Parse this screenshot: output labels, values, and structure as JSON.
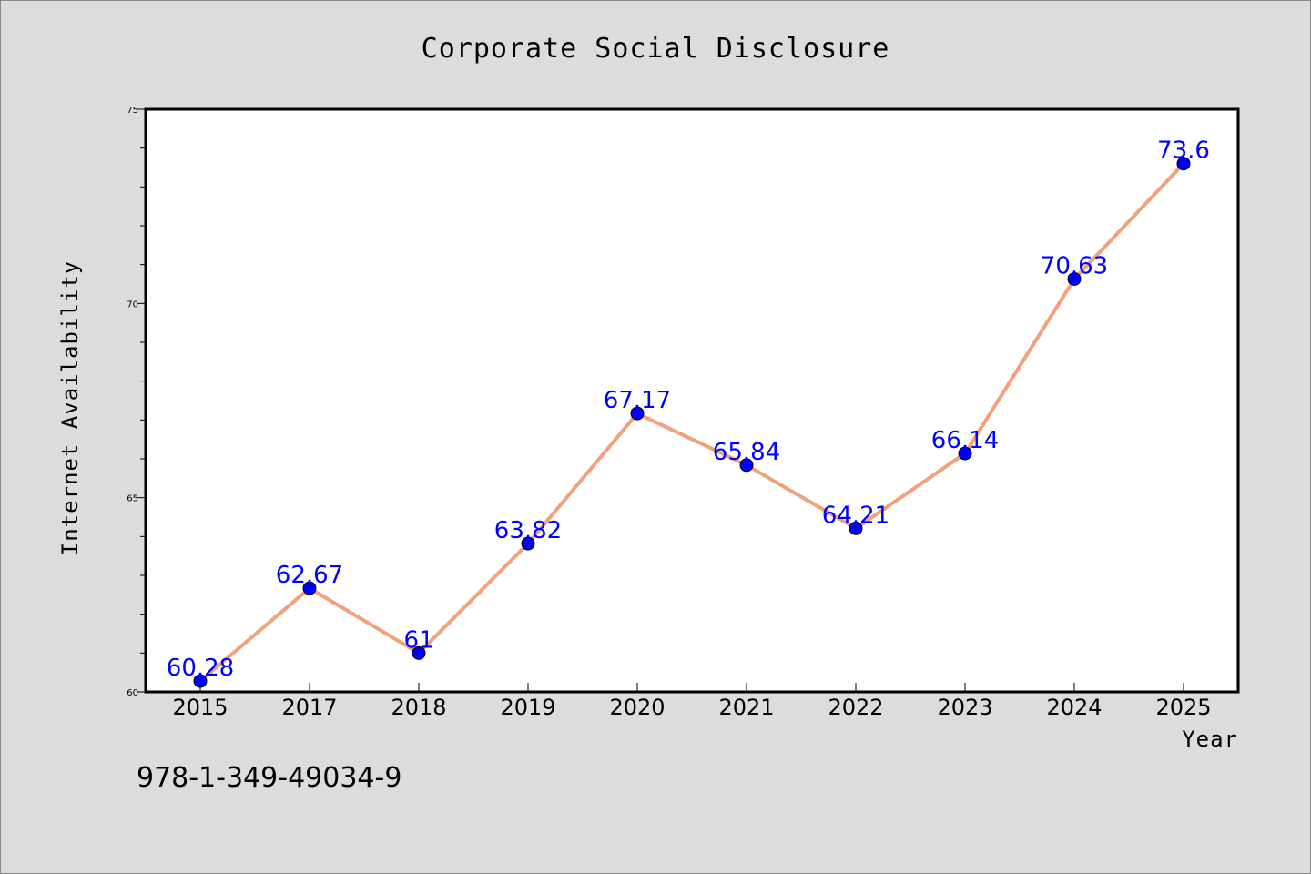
{
  "chart_data": {
    "type": "line",
    "title": "Corporate Social Disclosure",
    "xlabel": "Year",
    "ylabel": "Internet Availability",
    "categories": [
      "2015",
      "2017",
      "2018",
      "2019",
      "2020",
      "2021",
      "2022",
      "2023",
      "2024",
      "2025"
    ],
    "values": [
      60.28,
      62.67,
      61,
      63.82,
      67.17,
      65.84,
      64.21,
      66.14,
      70.63,
      73.6
    ],
    "data_labels": [
      "60.28",
      "62.67",
      "61",
      "63.82",
      "67.17",
      "65.84",
      "64.21",
      "66.14",
      "70.63",
      "73.6"
    ],
    "ylim": [
      60,
      75
    ],
    "yticks": [
      "60",
      "65",
      "70",
      "75"
    ],
    "grid": false,
    "colors": {
      "line": "#f4a07a",
      "marker": "#0000ff",
      "label": "#0000ff",
      "background": "#dcdcdc",
      "plot": "#ffffff"
    }
  },
  "footer": {
    "isbn": "978-1-349-49034-9"
  }
}
